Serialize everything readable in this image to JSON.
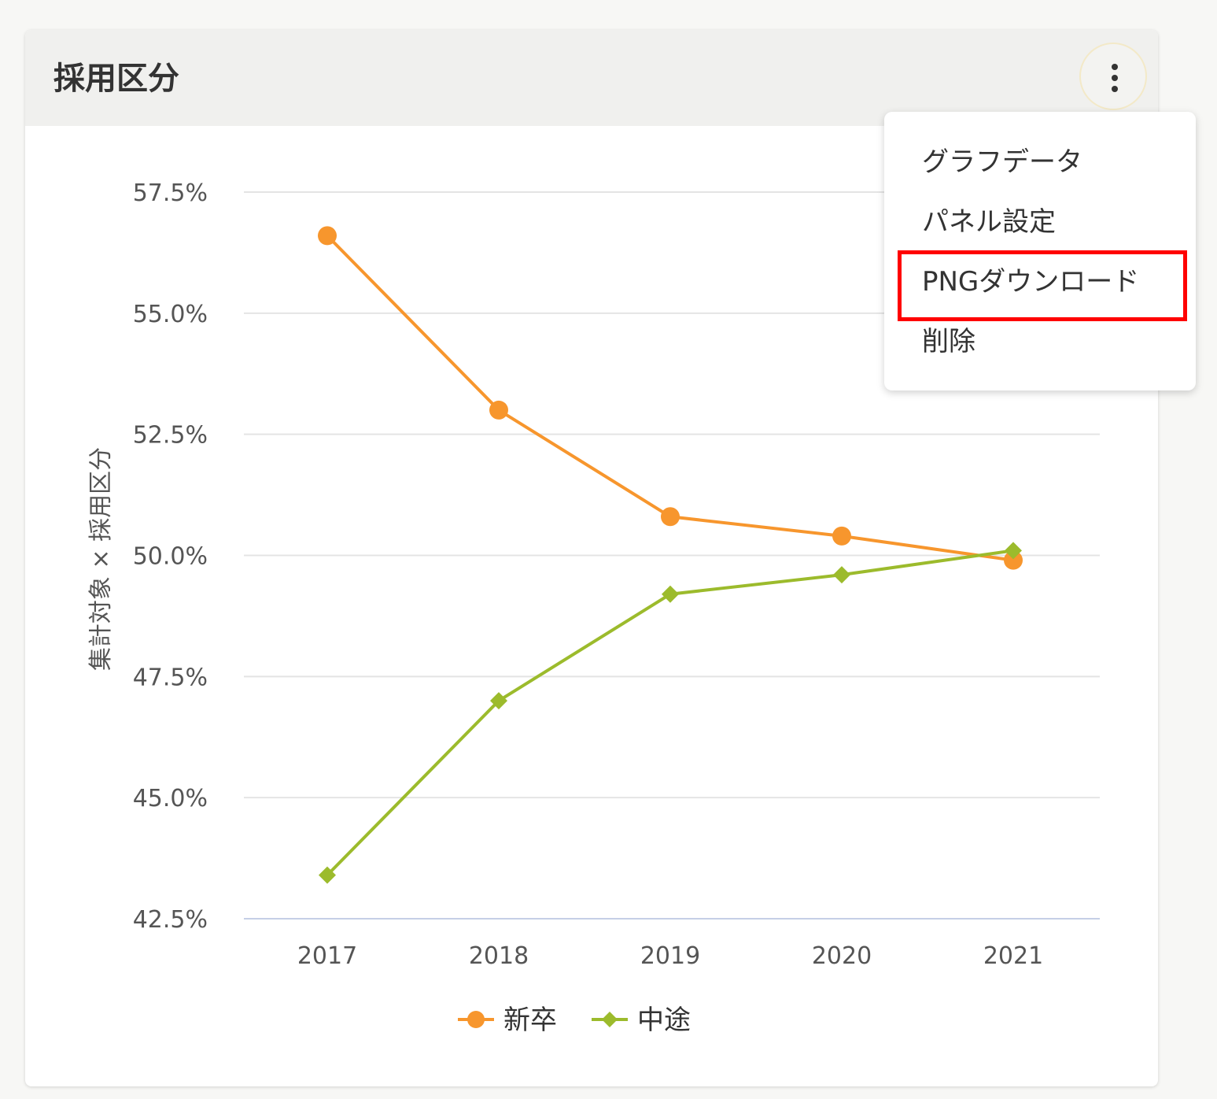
{
  "panel": {
    "title": "採用区分",
    "menu_icon": "more-vert-icon"
  },
  "menu": {
    "items": [
      {
        "label": "グラフデータ"
      },
      {
        "label": "パネル設定"
      },
      {
        "label": "PNGダウンロード",
        "highlighted": true
      },
      {
        "label": "削除"
      }
    ],
    "highlight_color": "#ff0000"
  },
  "chart_data": {
    "type": "line",
    "title": "",
    "xlabel": "",
    "ylabel": "集計対象 × 採用区分",
    "categories": [
      "2017",
      "2018",
      "2019",
      "2020",
      "2021"
    ],
    "series": [
      {
        "name": "新卒",
        "values": [
          56.6,
          53.0,
          50.8,
          50.4,
          49.9
        ],
        "color": "#f7962d",
        "marker": "circle"
      },
      {
        "name": "中途",
        "values": [
          43.4,
          47.0,
          49.2,
          49.6,
          50.1
        ],
        "color": "#9cbb2c",
        "marker": "diamond"
      }
    ],
    "ylim": [
      42.5,
      57.5
    ],
    "yticks": [
      "57.5%",
      "55.0%",
      "52.5%",
      "50.0%",
      "47.5%",
      "45.0%",
      "42.5%"
    ],
    "grid": true,
    "legend": "bottom-center"
  }
}
